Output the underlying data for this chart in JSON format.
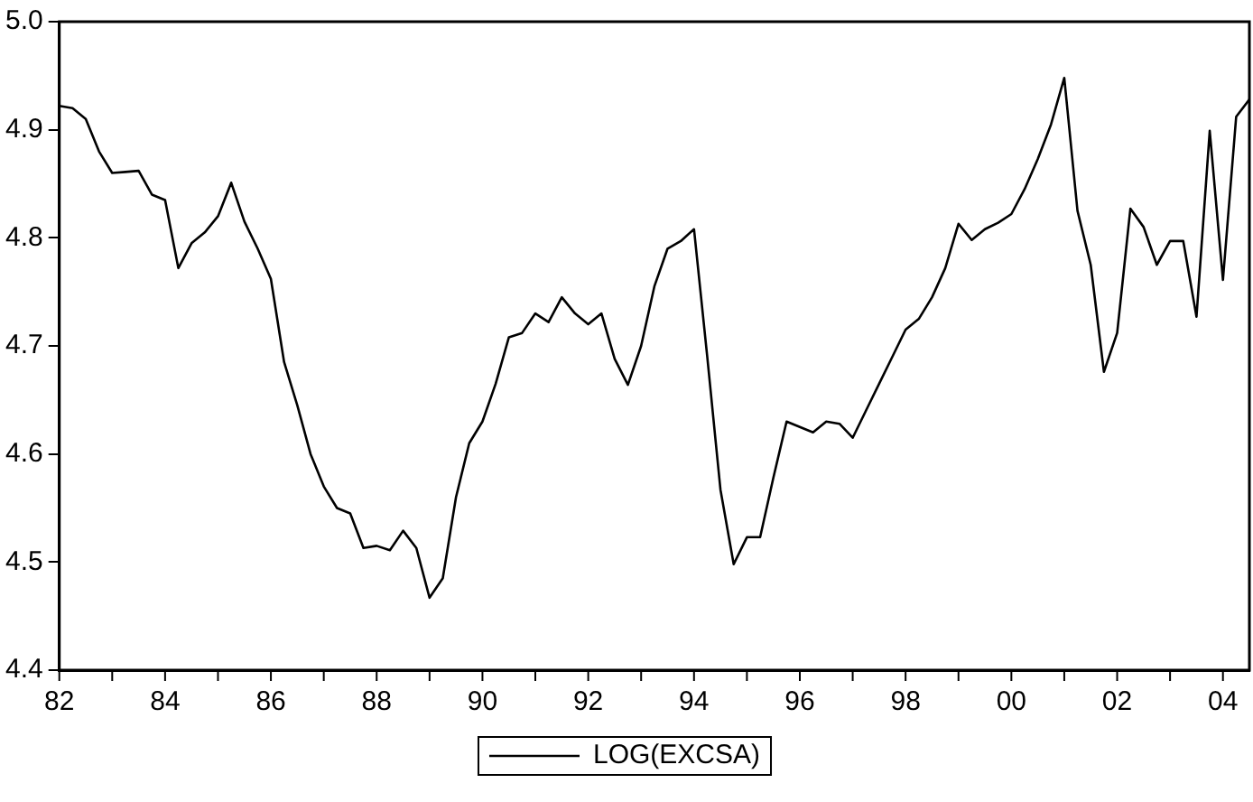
{
  "chart_data": {
    "type": "line",
    "xlim": [
      1982,
      2004.5
    ],
    "xticks": [
      {
        "value": 1982,
        "label": "82"
      },
      {
        "value": 1983,
        "label": null
      },
      {
        "value": 1984,
        "label": "84"
      },
      {
        "value": 1985,
        "label": null
      },
      {
        "value": 1986,
        "label": "86"
      },
      {
        "value": 1987,
        "label": null
      },
      {
        "value": 1988,
        "label": "88"
      },
      {
        "value": 1989,
        "label": null
      },
      {
        "value": 1990,
        "label": "90"
      },
      {
        "value": 1991,
        "label": null
      },
      {
        "value": 1992,
        "label": "92"
      },
      {
        "value": 1993,
        "label": null
      },
      {
        "value": 1994,
        "label": "94"
      },
      {
        "value": 1995,
        "label": null
      },
      {
        "value": 1996,
        "label": "96"
      },
      {
        "value": 1997,
        "label": null
      },
      {
        "value": 1998,
        "label": "98"
      },
      {
        "value": 1999,
        "label": null
      },
      {
        "value": 2000,
        "label": "00"
      },
      {
        "value": 2001,
        "label": null
      },
      {
        "value": 2002,
        "label": "02"
      },
      {
        "value": 2003,
        "label": null
      },
      {
        "value": 2004,
        "label": "04"
      }
    ],
    "ylim": [
      4.4,
      5.0
    ],
    "yticks": [
      4.4,
      4.5,
      4.6,
      4.7,
      4.8,
      4.9,
      {
        "value": 5.0,
        "label": "5.0"
      }
    ],
    "grid": false,
    "legend": "bottom",
    "marker": "none",
    "line_style": "solid",
    "x": [
      1982,
      1982.25,
      1982.5,
      1982.75,
      1983,
      1983.25,
      1983.5,
      1983.75,
      1984,
      1984.25,
      1984.5,
      1984.75,
      1985,
      1985.25,
      1985.5,
      1985.75,
      1986,
      1986.25,
      1986.5,
      1986.75,
      1987,
      1987.25,
      1987.5,
      1987.75,
      1988,
      1988.25,
      1988.5,
      1988.75,
      1989,
      1989.25,
      1989.5,
      1989.75,
      1990,
      1990.25,
      1990.5,
      1990.75,
      1991,
      1991.25,
      1991.5,
      1991.75,
      1992,
      1992.25,
      1992.5,
      1992.75,
      1993,
      1993.25,
      1993.5,
      1993.75,
      1994,
      1994.25,
      1994.5,
      1994.75,
      1995,
      1995.25,
      1995.5,
      1995.75,
      1996,
      1996.25,
      1996.5,
      1996.75,
      1997,
      1997.25,
      1997.5,
      1997.75,
      1998,
      1998.25,
      1998.5,
      1998.75,
      1999,
      1999.25,
      1999.5,
      1999.75,
      2000,
      2000.25,
      2000.5,
      2000.75,
      2001,
      2001.25,
      2001.5,
      2001.75,
      2002,
      2002.25,
      2002.5,
      2002.75,
      2003,
      2003.25,
      2003.5,
      2003.75,
      2004,
      2004.25,
      2004.5
    ],
    "series": [
      {
        "name": "LOG(EXCSA)",
        "color": "#000000",
        "values": [
          4.922,
          4.92,
          4.91,
          4.88,
          4.86,
          4.861,
          4.862,
          4.84,
          4.835,
          4.772,
          4.795,
          4.805,
          4.82,
          4.851,
          4.815,
          4.79,
          4.762,
          4.685,
          4.645,
          4.6,
          4.57,
          4.55,
          4.545,
          4.513,
          4.515,
          4.511,
          4.529,
          4.513,
          4.467,
          4.485,
          4.56,
          4.61,
          4.63,
          4.665,
          4.708,
          4.712,
          4.73,
          4.722,
          4.745,
          4.73,
          4.72,
          4.73,
          4.688,
          4.664,
          4.7,
          4.755,
          4.79,
          4.797,
          4.808,
          4.69,
          4.567,
          4.498,
          4.523,
          4.523,
          4.578,
          4.63,
          4.625,
          4.62,
          4.63,
          4.628,
          4.615,
          4.64,
          4.665,
          4.69,
          4.715,
          4.725,
          4.745,
          4.772,
          4.813,
          4.798,
          4.808,
          4.814,
          4.822,
          4.845,
          4.873,
          4.905,
          4.948,
          4.825,
          4.775,
          4.676,
          4.712,
          4.827,
          4.81,
          4.775,
          4.797,
          4.797,
          4.727,
          4.899,
          4.761,
          4.912,
          4.928
        ]
      }
    ]
  }
}
